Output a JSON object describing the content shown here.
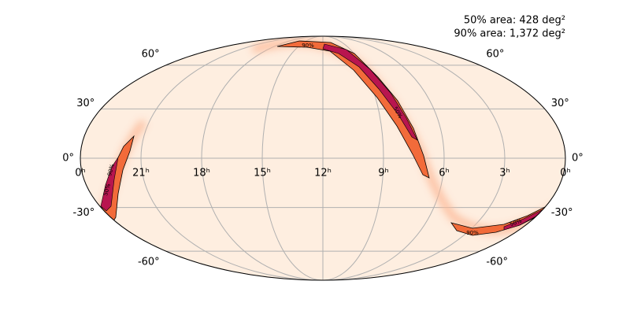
{
  "chart_data": {
    "type": "skymap",
    "projection": "mollweide",
    "annotations": [
      "50% area: 428 deg²",
      "90% area: 1,372 deg²"
    ],
    "xlim": [
      24,
      0
    ],
    "xticks": [
      {
        "value": 24,
        "label": "0ʰ"
      },
      {
        "value": 21,
        "label": "21ʰ"
      },
      {
        "value": 18,
        "label": "18ʰ"
      },
      {
        "value": 15,
        "label": "15ʰ"
      },
      {
        "value": 12,
        "label": "12ʰ"
      },
      {
        "value": 9,
        "label": "9ʰ"
      },
      {
        "value": 6,
        "label": "6ʰ"
      },
      {
        "value": 3,
        "label": "3ʰ"
      },
      {
        "value": 0,
        "label": "0ʰ"
      }
    ],
    "ylim": [
      -90,
      90
    ],
    "yticks": [
      {
        "value": 60,
        "label": "60°"
      },
      {
        "value": 30,
        "label": "30°"
      },
      {
        "value": 0,
        "label": "0°"
      },
      {
        "value": -30,
        "label": "-30°"
      },
      {
        "value": -60,
        "label": "-60°"
      }
    ],
    "contour_labels": [
      "90%",
      "50%",
      "90%",
      "50%",
      "90%",
      "50%"
    ],
    "grid": true
  }
}
